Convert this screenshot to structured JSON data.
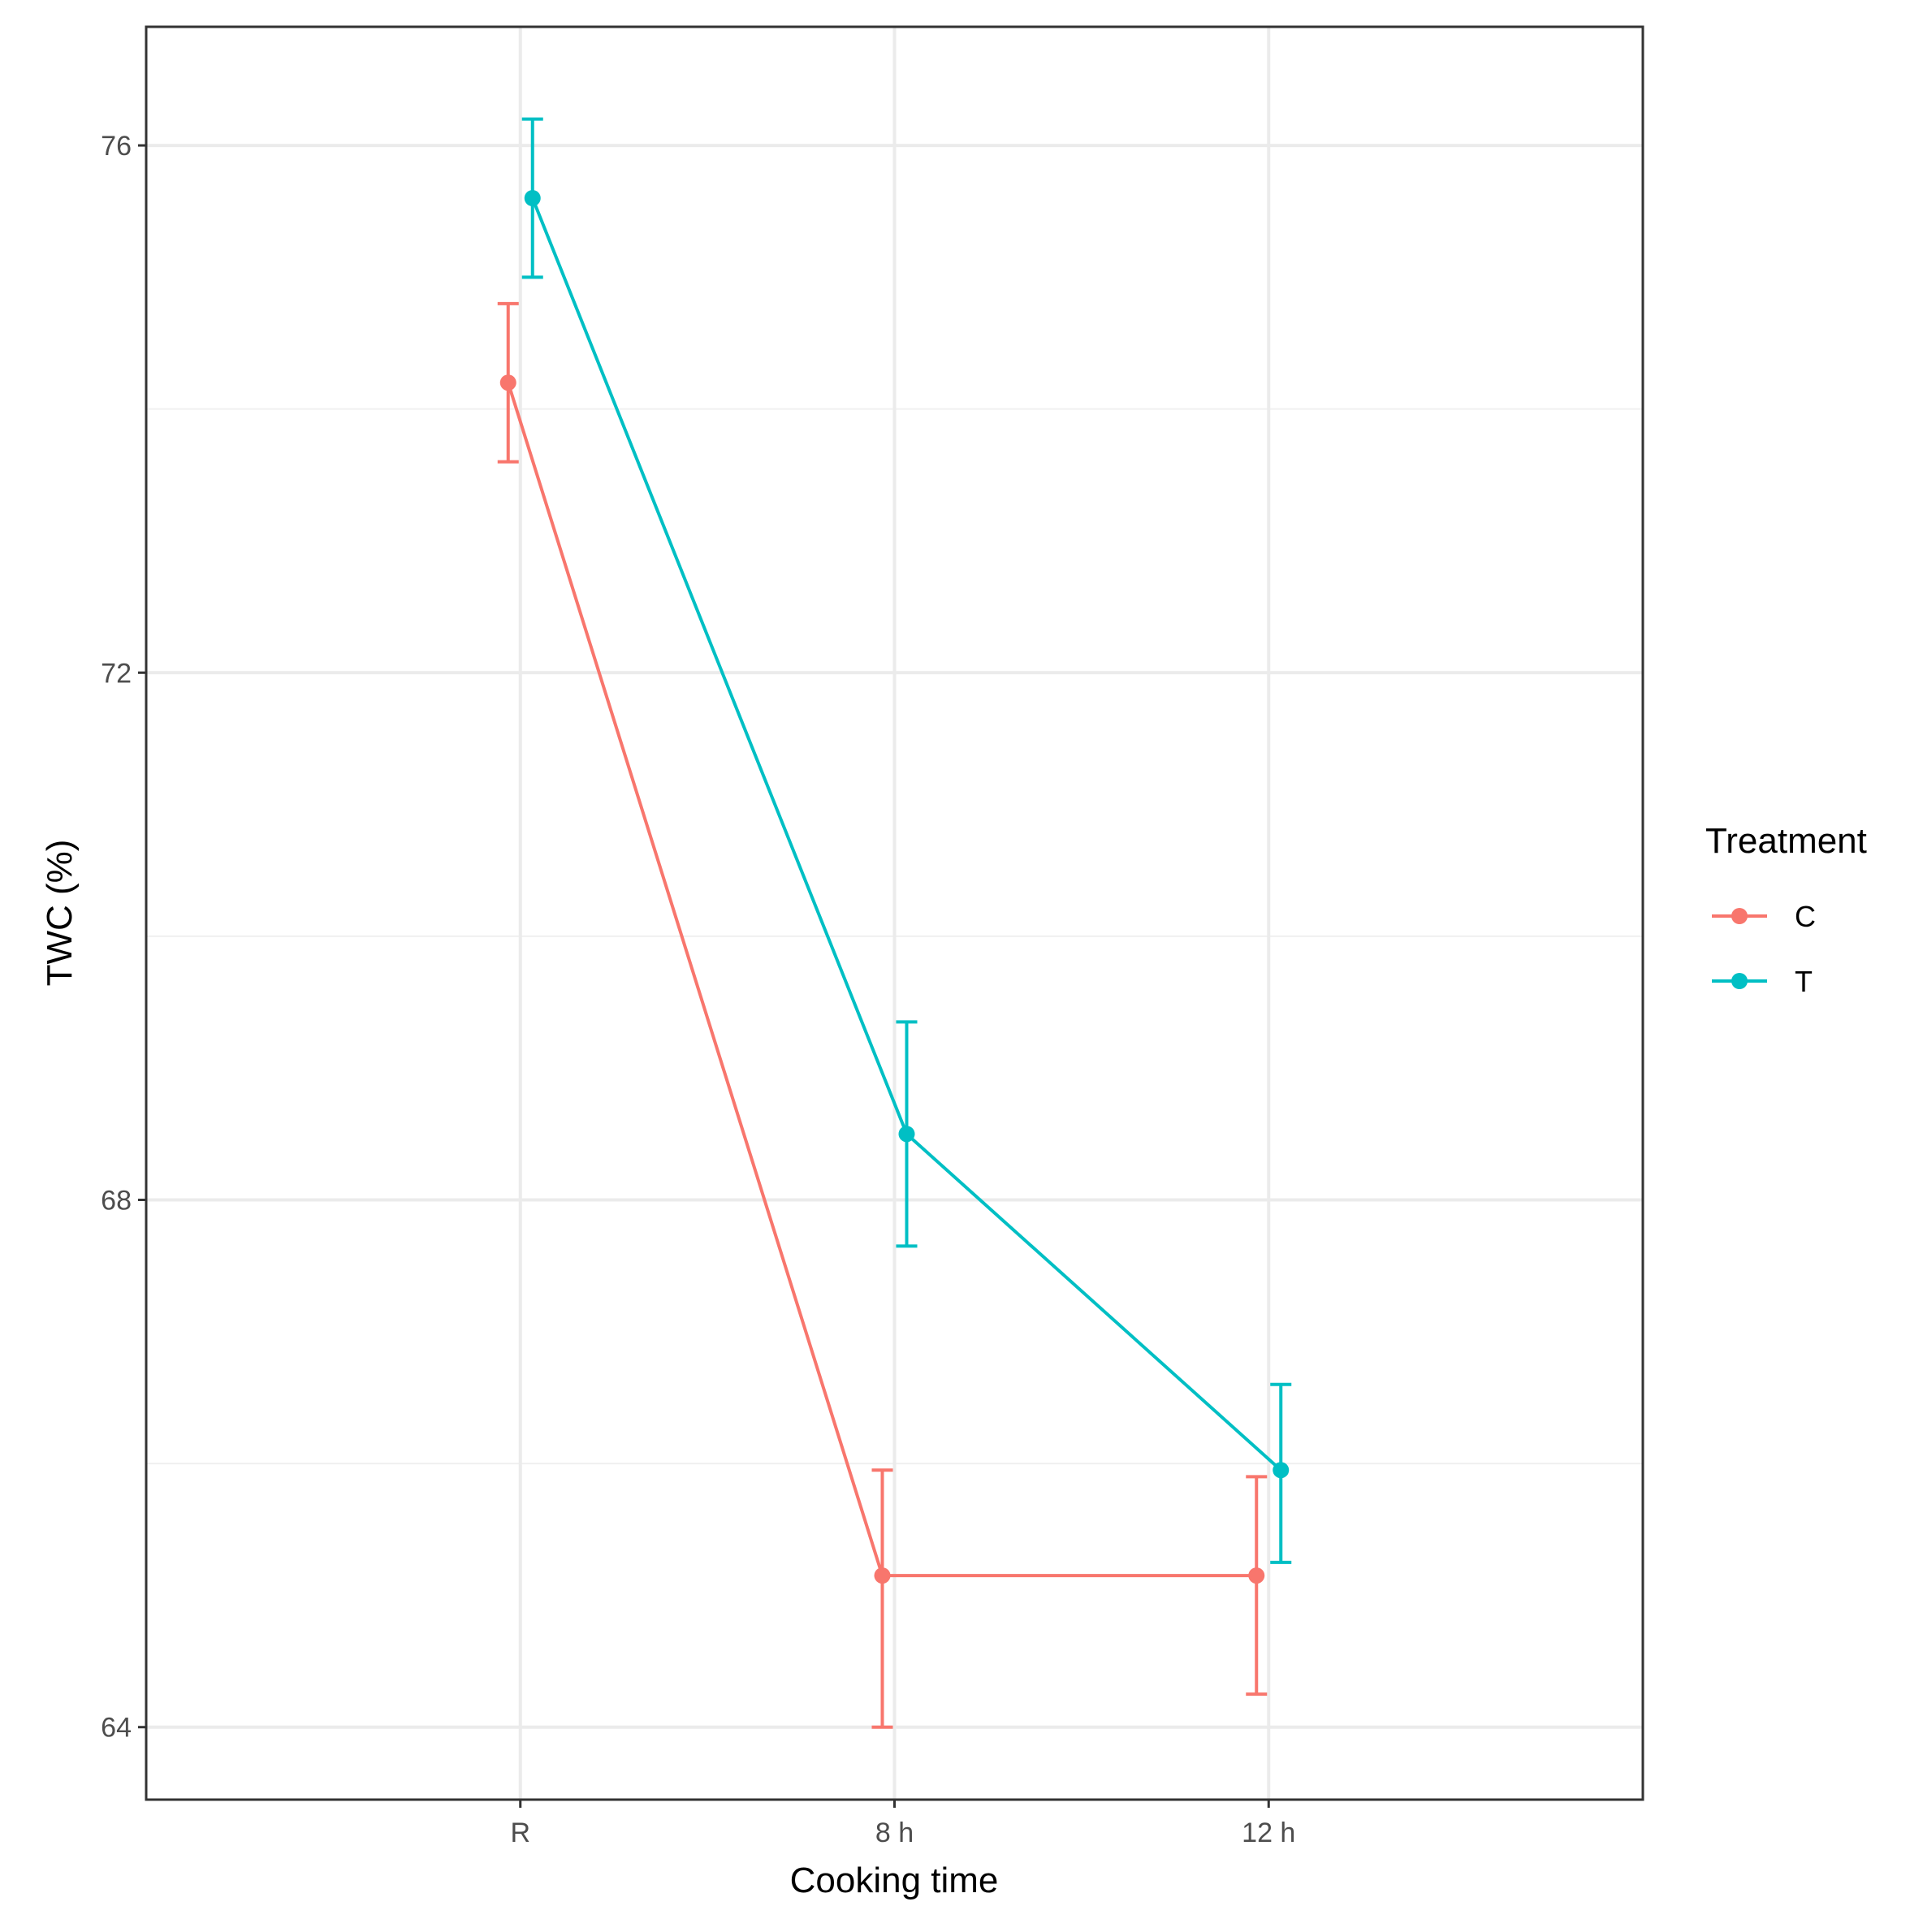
{
  "chart_data": {
    "type": "line",
    "title": "",
    "xlabel": "Cooking time",
    "ylabel": "TWC (%)",
    "categories": [
      "R",
      "8 h",
      "12 h"
    ],
    "ylim": [
      63.45,
      76.9
    ],
    "yticks": [
      64,
      68,
      72,
      76
    ],
    "grid": true,
    "legend": {
      "title": "Treatment",
      "position": "right"
    },
    "series": [
      {
        "name": "C",
        "color": "#F8766D",
        "values": [
          74.2,
          65.15,
          65.15
        ],
        "error_low": [
          73.6,
          64.0,
          64.25
        ],
        "error_high": [
          74.8,
          65.95,
          65.9
        ]
      },
      {
        "name": "T",
        "color": "#00BFC4",
        "values": [
          75.6,
          68.5,
          65.95
        ],
        "error_low": [
          75.0,
          67.65,
          65.25
        ],
        "error_high": [
          76.2,
          69.35,
          66.6
        ]
      }
    ]
  }
}
